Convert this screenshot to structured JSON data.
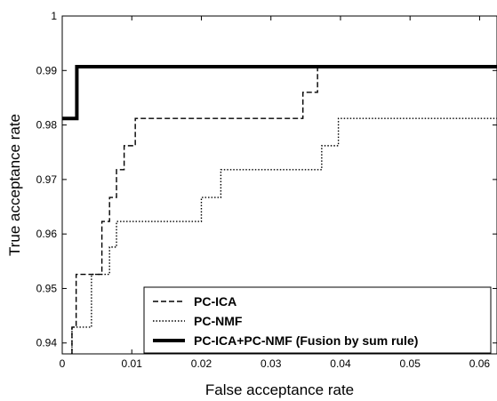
{
  "chart_data": {
    "type": "line",
    "title": "",
    "xlabel": "False acceptance rate",
    "ylabel": "True acceptance rate",
    "xlim": [
      0,
      0.0625
    ],
    "ylim": [
      0.938,
      1.0
    ],
    "x_ticks": [
      0,
      0.01,
      0.02,
      0.03,
      0.04,
      0.05,
      0.06
    ],
    "x_tick_labels": [
      "0",
      "0.01",
      "0.02",
      "0.03",
      "0.04",
      "0.05",
      "0.06"
    ],
    "y_ticks": [
      0.94,
      0.95,
      0.96,
      0.97,
      0.98,
      0.99,
      1.0
    ],
    "y_tick_labels": [
      "0.94",
      "0.95",
      "0.96",
      "0.97",
      "0.98",
      "0.99",
      "1"
    ],
    "grid": false,
    "legend_position": "bottom-right",
    "series": [
      {
        "name": "PC-ICA",
        "style": "dashed",
        "x": [
          0.0014,
          0.0014,
          0.002,
          0.002,
          0.0057,
          0.0057,
          0.0068,
          0.0068,
          0.0078,
          0.0078,
          0.0089,
          0.0089,
          0.0105,
          0.0105,
          0.0346,
          0.0346,
          0.0367,
          0.0367,
          0.0625
        ],
        "y": [
          0.938,
          0.9429,
          0.9429,
          0.9526,
          0.9526,
          0.9623,
          0.9623,
          0.9667,
          0.9667,
          0.9718,
          0.9718,
          0.9762,
          0.9762,
          0.9812,
          0.9812,
          0.986,
          0.986,
          0.9907,
          0.9907
        ]
      },
      {
        "name": "PC-NMF",
        "style": "dotted",
        "x": [
          0.0014,
          0.0014,
          0.0042,
          0.0042,
          0.0068,
          0.0068,
          0.0078,
          0.0078,
          0.02,
          0.02,
          0.0228,
          0.0228,
          0.0373,
          0.0373,
          0.0397,
          0.0397,
          0.0625
        ],
        "y": [
          0.938,
          0.9429,
          0.9429,
          0.9526,
          0.9526,
          0.9576,
          0.9576,
          0.9623,
          0.9623,
          0.9667,
          0.9667,
          0.9718,
          0.9718,
          0.9762,
          0.9762,
          0.9812,
          0.9812
        ]
      },
      {
        "name": "PC-ICA+PC-NMF (Fusion by sum rule)",
        "style": "solid-thick",
        "x": [
          0.0,
          0.0021,
          0.0021,
          0.0625
        ],
        "y": [
          0.9812,
          0.9812,
          0.9907,
          0.9907
        ]
      }
    ]
  }
}
